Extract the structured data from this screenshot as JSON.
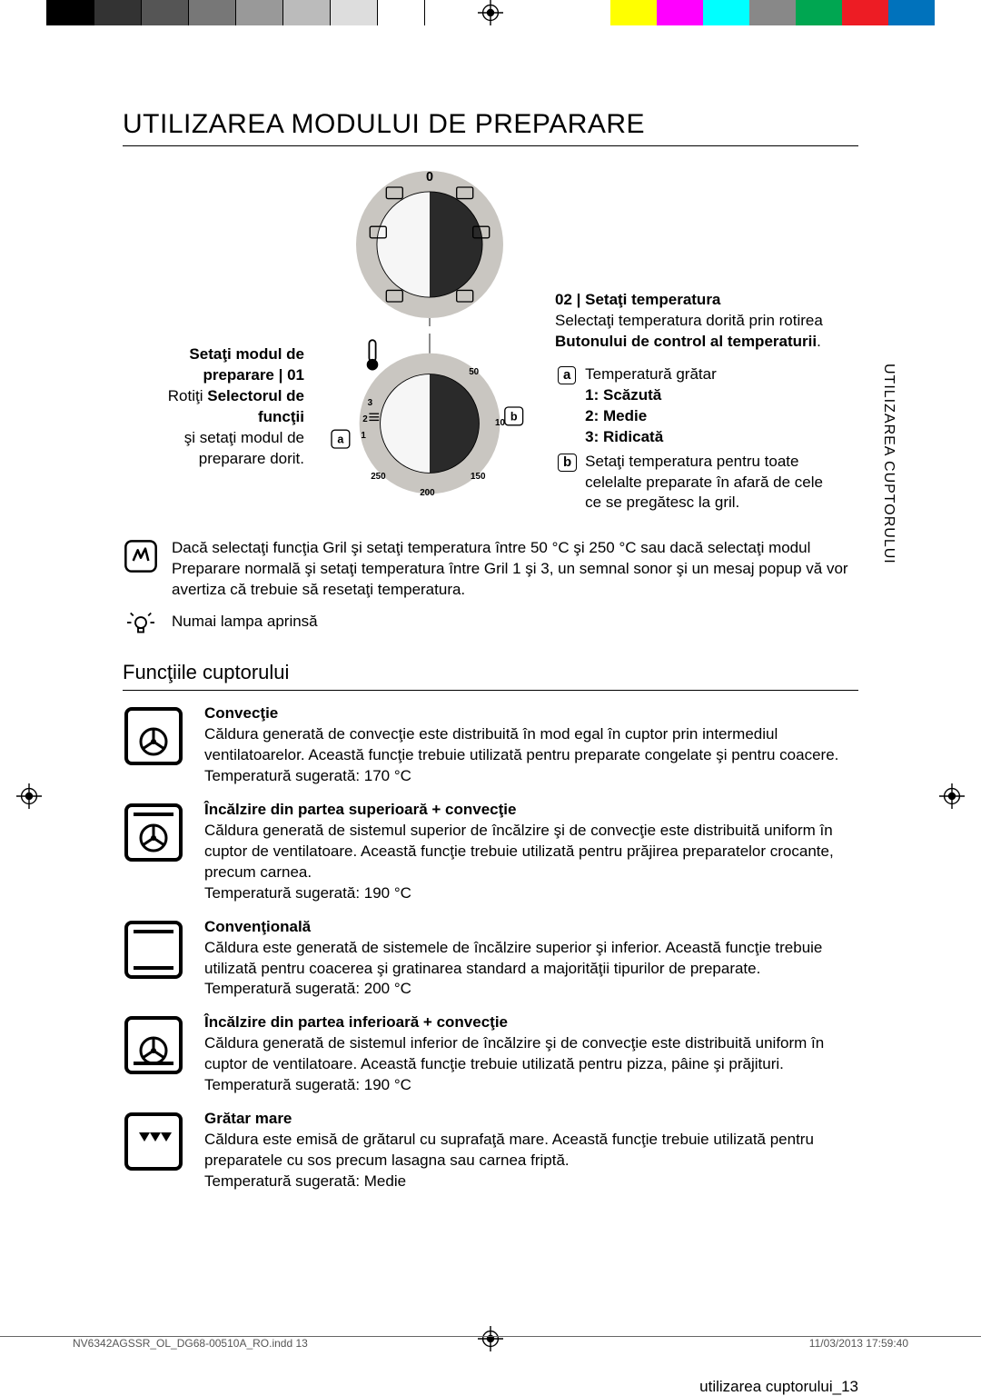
{
  "colorbar": [
    "#ffffff",
    "#000000",
    "#333333",
    "#555555",
    "#777777",
    "#999999",
    "#bbbbbb",
    "#dddddd",
    "#ffffff",
    "#ffffff",
    "#ffffff",
    "#ffffff",
    "#ffffff",
    "#ffff00",
    "#ff00ff",
    "#00ffff",
    "#888888",
    "#00a651",
    "#ed1c24",
    "#0072bc",
    "#ffffff"
  ],
  "title": "UTILIZAREA MODULUI DE PREPARARE",
  "vtab": "UTILIZAREA CUPTORULUI",
  "left_block": {
    "heading": "Setaţi modul de preparare | 01",
    "line1_pre": "Rotiţi ",
    "line1_bold": "Selectorul de funcţii",
    "line2": "şi setaţi modul de preparare dorit."
  },
  "right_block": {
    "heading": "02 | Setaţi temperatura",
    "line1_pre": "Selectaţi temperatura dorită prin rotirea ",
    "line1_bold": "Butonului de control al temperaturii",
    "a_label": "a",
    "b_label": "b",
    "a_text": "Temperatură grătar",
    "a_1": "1:  Scăzută",
    "a_2": "2:  Medie",
    "a_3": "3:  Ridicată",
    "b_text": "Setaţi temperatura pentru toate celelalte preparate în afară de cele ce se pregătesc la gril."
  },
  "note": "Dacă selectaţi funcţia Gril şi setaţi temperatura între 50 °C şi 250 °C sau dacă selectaţi modul Preparare normală şi setaţi temperatura între Gril 1 şi 3, un semnal sonor şi un mesaj popup vă vor avertiza că trebuie să resetaţi temperatura.",
  "lamp_note": "Numai lampa aprinsă",
  "section2": "Funcţiile cuptorului",
  "functions": [
    {
      "icon": "fan",
      "title": "Convecţie",
      "body": "Căldura generată de convecţie este distribuită în mod egal în cuptor prin intermediul ventilatoarelor. Această funcţie trebuie utilizată pentru preparate congelate şi pentru coacere.",
      "temp": "Temperatură sugerată: 170 °C"
    },
    {
      "icon": "top-fan",
      "title": "Încălzire din partea superioară + convecţie",
      "body": "Căldura generată de sistemul superior de încălzire şi de convecţie este distribuită uniform în cuptor de ventilatoare. Această funcţie trebuie utilizată pentru prăjirea preparatelor crocante, precum carnea.",
      "temp": "Temperatură sugerată: 190 °C"
    },
    {
      "icon": "conventional",
      "title": "Convenţională",
      "body": "Căldura este generată de sistemele de încălzire superior şi inferior. Această funcţie trebuie utilizată pentru coacerea şi gratinarea standard a majorităţii tipurilor de preparate.",
      "temp": "Temperatură sugerată: 200 °C"
    },
    {
      "icon": "bottom-fan",
      "title": "Încălzire din partea inferioară + convecţie",
      "body": "Căldura generată de sistemul inferior de încălzire şi de convecţie este distribuită uniform în cuptor de ventilatoare. Această funcţie trebuie utilizată pentru pizza, pâine şi prăjituri.",
      "temp": "Temperatură sugerată: 190 °C"
    },
    {
      "icon": "large-grill",
      "title": "Grătar mare",
      "body": "Căldura este emisă de grătarul cu suprafaţă mare. Această funcţie trebuie utilizată pentru preparatele cu sos precum lasagna sau carnea friptă.",
      "temp": "Temperatură sugerată: Medie"
    }
  ],
  "footer_label": "utilizarea cuptorului_13",
  "footer_left": "NV6342AGSSR_OL_DG68-00510A_RO.indd   13",
  "footer_right": "11/03/2013   17:59:40",
  "dial1": {
    "outer": "#c9c6c1",
    "inner_dark": "#2a2a2a",
    "inner_light": "#f6f6f6",
    "zero": "0"
  },
  "dial2": {
    "outer": "#c9c6c1",
    "ticks": [
      "50",
      "100",
      "150",
      "200",
      "250",
      "1",
      "2",
      "3"
    ]
  }
}
